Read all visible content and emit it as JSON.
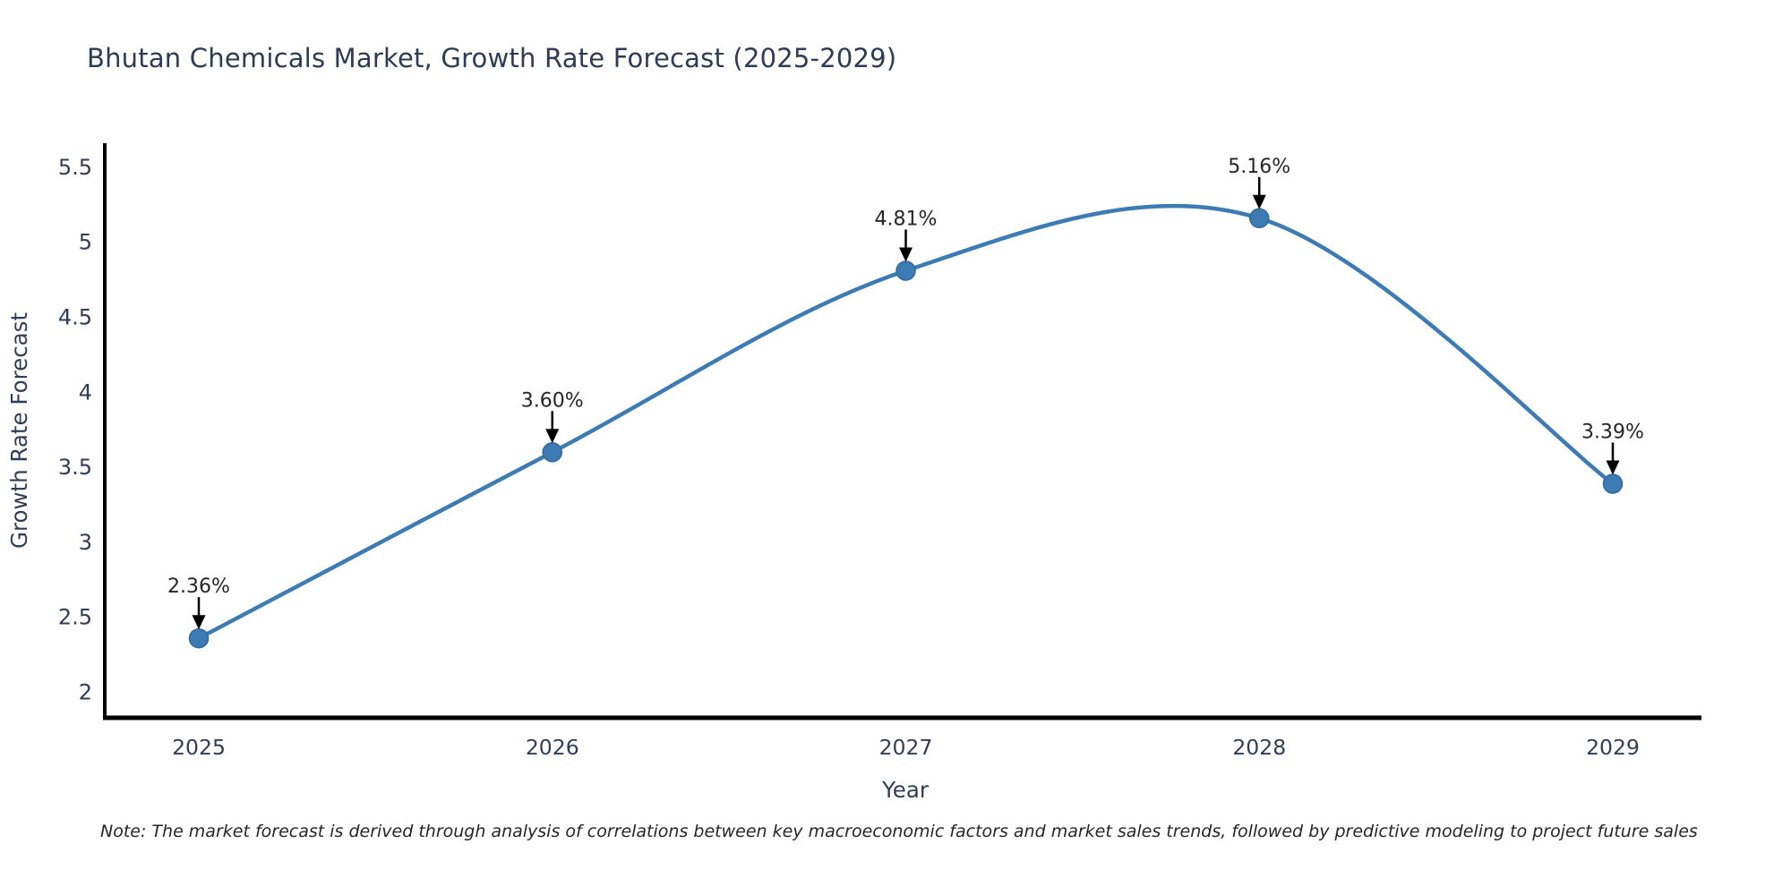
{
  "chart_data": {
    "type": "line",
    "title": "Bhutan Chemicals Market, Growth Rate Forecast (2025-2029)",
    "xlabel": "Year",
    "ylabel": "Growth Rate Forecast",
    "categories": [
      "2025",
      "2026",
      "2027",
      "2028",
      "2029"
    ],
    "series": [
      {
        "name": "Growth Rate Forecast",
        "values": [
          2.36,
          3.6,
          4.81,
          5.16,
          3.39
        ],
        "point_labels": [
          "2.36%",
          "3.60%",
          "4.81%",
          "5.16%",
          "3.39%"
        ]
      }
    ],
    "yticks": [
      {
        "v": 2,
        "label": "2"
      },
      {
        "v": 2.5,
        "label": "2.5"
      },
      {
        "v": 3,
        "label": "3"
      },
      {
        "v": 3.5,
        "label": "3.5"
      },
      {
        "v": 4,
        "label": "4"
      },
      {
        "v": 4.5,
        "label": "4.5"
      },
      {
        "v": 5,
        "label": "5"
      },
      {
        "v": 5.5,
        "label": "5.5"
      }
    ],
    "ylim": [
      1.83,
      5.66
    ],
    "grid": false,
    "legend_position": "none",
    "line_style": "spline",
    "colors": {
      "line": "#3c7bb4",
      "marker": "#3c7bb4",
      "marker_edge": "#31699e",
      "axis_spine": "#000000",
      "axis_text": "#2f3e58",
      "annotation_text": "#262626",
      "annotation_arrow": "#000000"
    }
  },
  "note": {
    "text": "Note: The market forecast is derived through analysis of correlations between key macroeconomic factors and market sales trends, followed by predictive modeling to project future sales"
  }
}
